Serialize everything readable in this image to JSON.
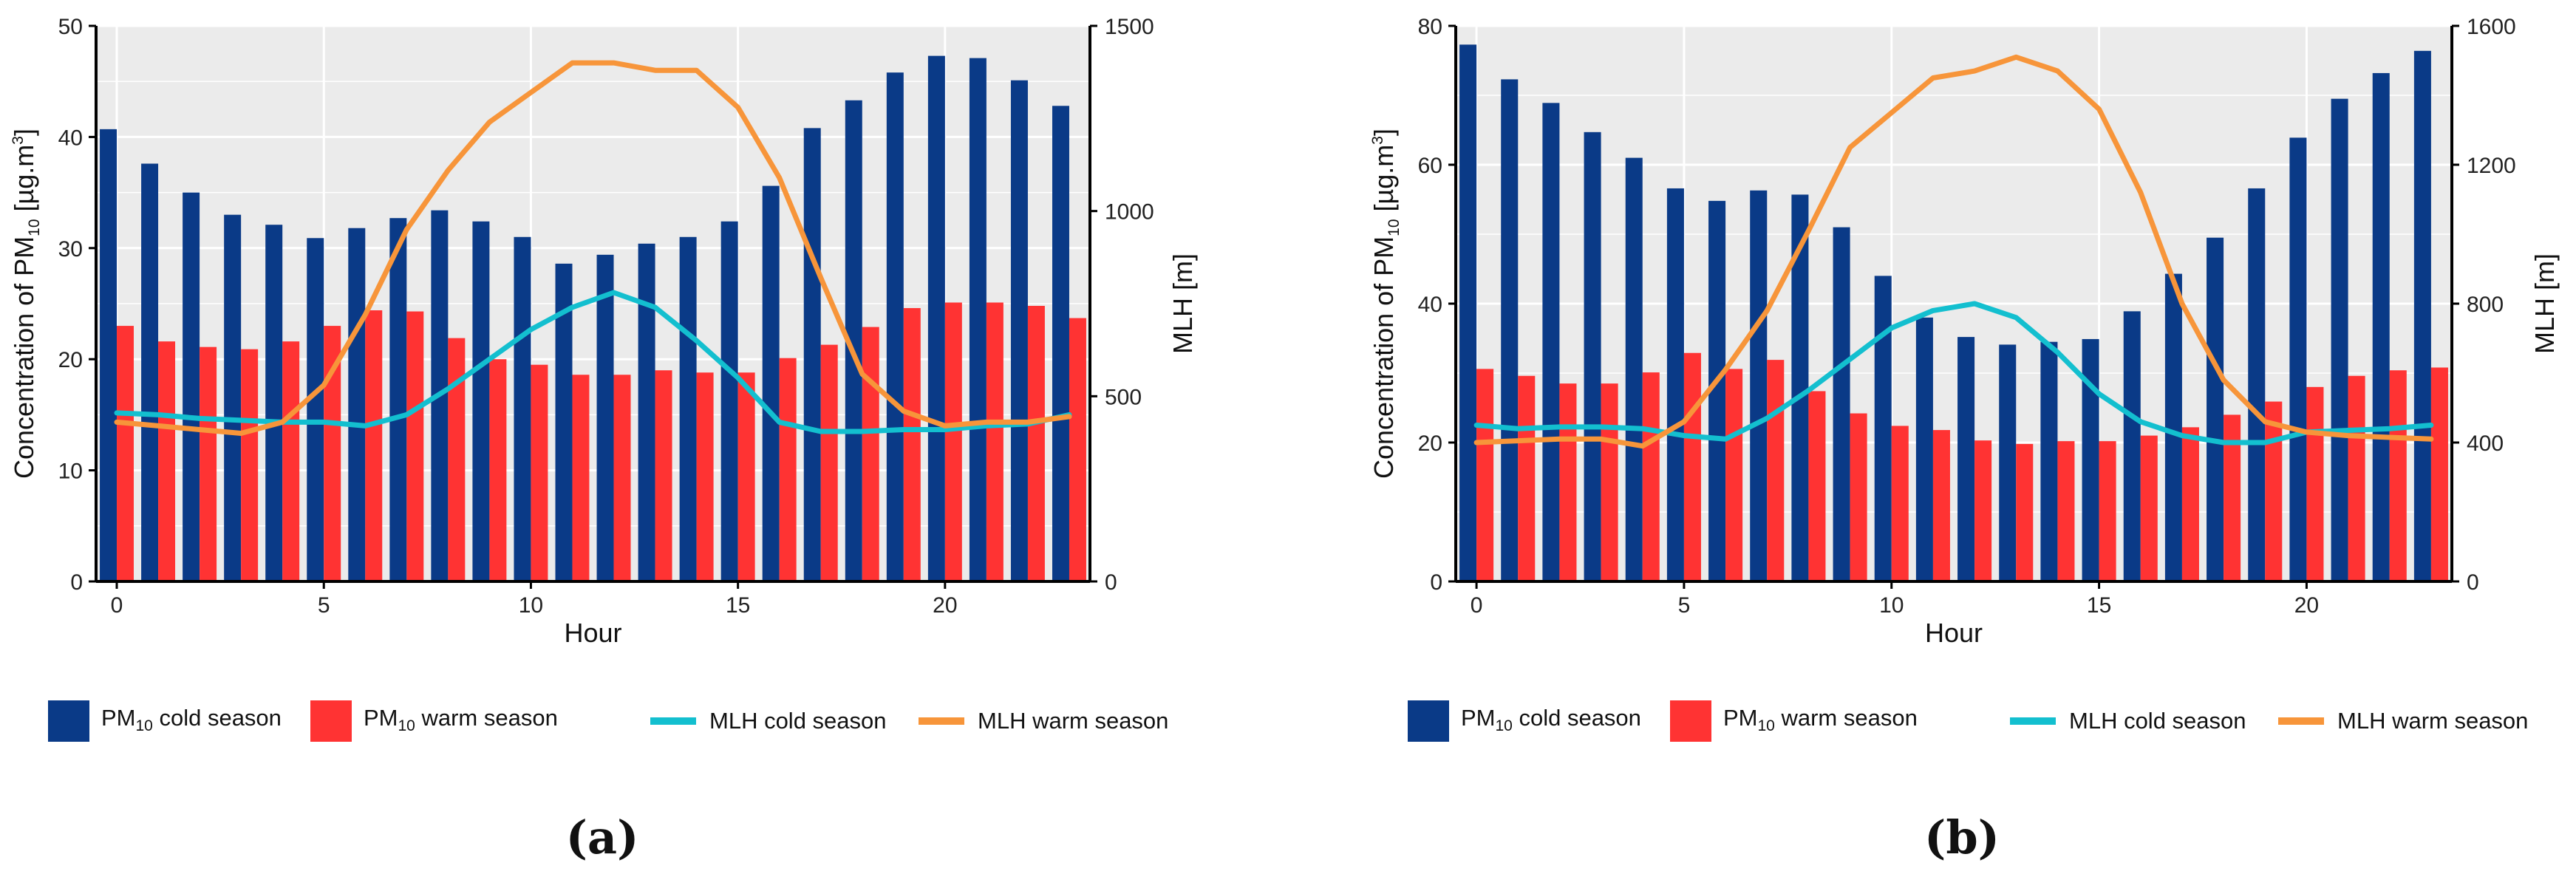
{
  "colors": {
    "pm_cold": "#0A3A87",
    "pm_warm": "#FF3333",
    "mlh_cold": "#13BFCF",
    "mlh_warm": "#F7953A",
    "panel_bg": "#EBEBEB"
  },
  "legend": {
    "pm": "PM",
    "sub10": "10",
    "cold": " cold season",
    "warm": " warm season",
    "mlh_cold": "MLH cold season",
    "mlh_warm": "MLH warm season"
  },
  "chart_data": [
    {
      "type": "bar",
      "panel_label": "(a)",
      "xlabel": "Hour",
      "ylabel_prefix": "Concentration of PM",
      "ylabel_sub": "10",
      "ylabel_unit": " [µg.m",
      "ylabel_sup": "3",
      "ylabel_close": "]",
      "y2label": "MLH [m]",
      "ylim": [
        0,
        50
      ],
      "y2lim": [
        0,
        1500
      ],
      "yticks": [
        0,
        10,
        20,
        30,
        40,
        50
      ],
      "y2ticks": [
        0,
        500,
        1000,
        1500
      ],
      "xticks": [
        0,
        5,
        10,
        15,
        20
      ],
      "x": [
        0,
        1,
        2,
        3,
        4,
        5,
        6,
        7,
        8,
        9,
        10,
        11,
        12,
        13,
        14,
        15,
        16,
        17,
        18,
        19,
        20,
        21,
        22,
        23
      ],
      "series": [
        {
          "name": "PM10 cold season",
          "values": [
            40.7,
            37.6,
            35.0,
            33.0,
            32.1,
            30.9,
            31.8,
            32.7,
            33.4,
            32.4,
            31.0,
            28.6,
            29.4,
            30.4,
            31.0,
            32.4,
            35.6,
            40.8,
            43.3,
            45.8,
            47.3,
            47.1,
            45.1,
            42.8
          ]
        },
        {
          "name": "PM10 warm season",
          "values": [
            23.0,
            21.6,
            21.1,
            20.9,
            21.6,
            23.0,
            24.4,
            24.3,
            21.9,
            20.0,
            19.5,
            18.6,
            18.6,
            19.0,
            18.8,
            18.8,
            20.1,
            21.3,
            22.9,
            24.6,
            25.1,
            25.1,
            24.8,
            23.7
          ]
        },
        {
          "name": "MLH cold season",
          "values": [
            455,
            450,
            440,
            435,
            430,
            430,
            420,
            450,
            520,
            600,
            680,
            740,
            780,
            740,
            650,
            550,
            430,
            405,
            405,
            410,
            410,
            420,
            425,
            450
          ]
        },
        {
          "name": "MLH warm season",
          "values": [
            430,
            420,
            410,
            400,
            430,
            530,
            720,
            950,
            1110,
            1240,
            1320,
            1400,
            1400,
            1380,
            1380,
            1280,
            1090,
            820,
            560,
            460,
            420,
            430,
            430,
            445
          ]
        }
      ]
    },
    {
      "type": "bar",
      "panel_label": "(b)",
      "xlabel": "Hour",
      "ylabel_prefix": "Concentration of PM",
      "ylabel_sub": "10",
      "ylabel_unit": " [µg.m",
      "ylabel_sup": "3",
      "ylabel_close": "]",
      "y2label": "MLH [m]",
      "ylim": [
        0,
        80
      ],
      "y2lim": [
        0,
        1600
      ],
      "yticks": [
        0,
        20,
        40,
        60,
        80
      ],
      "y2ticks": [
        0,
        400,
        800,
        1200,
        1600
      ],
      "xticks": [
        0,
        5,
        10,
        15,
        20
      ],
      "x": [
        0,
        1,
        2,
        3,
        4,
        5,
        6,
        7,
        8,
        9,
        10,
        11,
        12,
        13,
        14,
        15,
        16,
        17,
        18,
        19,
        20,
        21,
        22,
        23
      ],
      "series": [
        {
          "name": "PM10 cold season",
          "values": [
            77.3,
            72.3,
            68.9,
            64.7,
            61.0,
            56.6,
            54.8,
            56.3,
            55.7,
            51.0,
            44.0,
            38.0,
            35.2,
            34.1,
            34.5,
            34.9,
            38.9,
            44.3,
            49.5,
            56.6,
            63.9,
            69.5,
            73.2,
            76.4
          ]
        },
        {
          "name": "PM10 warm season",
          "values": [
            30.6,
            29.6,
            28.5,
            28.5,
            30.1,
            32.9,
            30.6,
            31.9,
            27.4,
            24.2,
            22.4,
            21.8,
            20.3,
            19.8,
            20.2,
            20.2,
            21.0,
            22.2,
            24.0,
            25.9,
            28.0,
            29.6,
            30.4,
            30.8
          ]
        },
        {
          "name": "MLH cold season",
          "values": [
            450,
            440,
            445,
            445,
            440,
            420,
            410,
            470,
            550,
            640,
            730,
            780,
            800,
            760,
            660,
            540,
            460,
            420,
            400,
            400,
            430,
            435,
            440,
            450
          ]
        },
        {
          "name": "MLH warm season",
          "values": [
            400,
            405,
            410,
            410,
            390,
            460,
            610,
            780,
            1010,
            1250,
            1350,
            1450,
            1470,
            1510,
            1470,
            1360,
            1120,
            800,
            580,
            460,
            430,
            420,
            415,
            410
          ]
        }
      ]
    }
  ]
}
